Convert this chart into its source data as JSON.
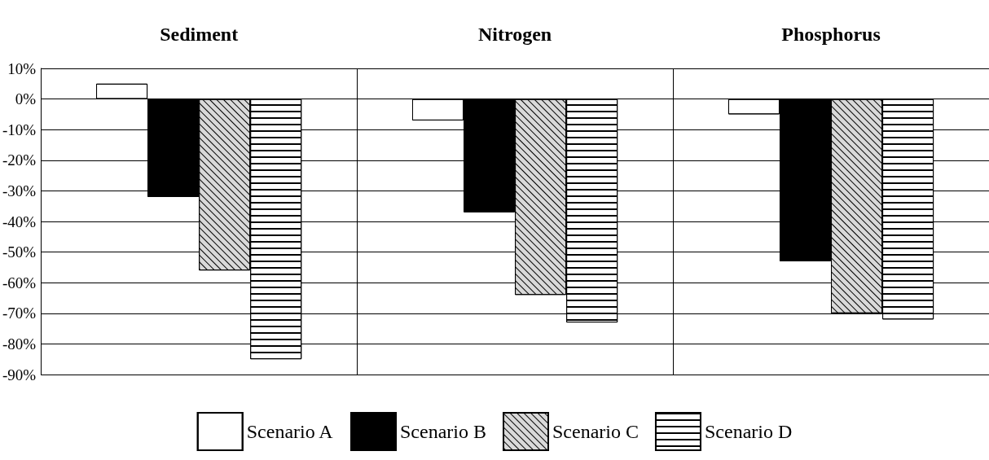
{
  "chart_data": {
    "type": "bar",
    "categories": [
      "Sediment",
      "Nitrogen",
      "Phosphorus"
    ],
    "series": [
      {
        "name": "Scenario A",
        "color": "#ffffff",
        "values": [
          5,
          -7,
          -5
        ]
      },
      {
        "name": "Scenario B",
        "color": "#000000",
        "values": [
          -32,
          -37,
          -53
        ]
      },
      {
        "name": "Scenario C",
        "color": "#d9d9d9",
        "values": [
          -56,
          -64,
          -70
        ]
      },
      {
        "name": "Scenario D",
        "color": "#ffffff",
        "values": [
          -85,
          -73,
          -72
        ]
      }
    ],
    "ylim": [
      -90,
      10
    ],
    "yticks": [
      {
        "value": 10,
        "label": "10%"
      },
      {
        "value": 0,
        "label": "0%"
      },
      {
        "value": -10,
        "label": "-10%"
      },
      {
        "value": -20,
        "label": "-20%"
      },
      {
        "value": -30,
        "label": "-30%"
      },
      {
        "value": -40,
        "label": "-40%"
      },
      {
        "value": -50,
        "label": "-50%"
      },
      {
        "value": -60,
        "label": "-60%"
      },
      {
        "value": -70,
        "label": "-70%"
      },
      {
        "value": -80,
        "label": "-80%"
      },
      {
        "value": -90,
        "label": "-90%"
      }
    ],
    "grid": true,
    "legend": "bottom"
  }
}
